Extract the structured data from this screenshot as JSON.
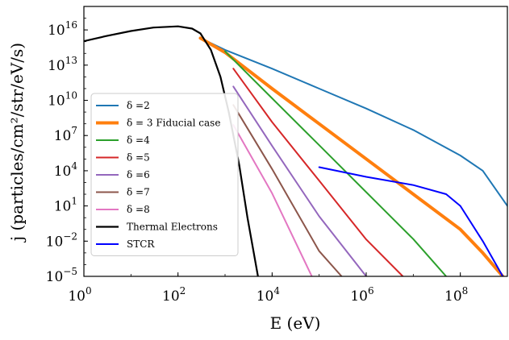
{
  "chart_data": {
    "type": "line",
    "title": "",
    "xlabel": "E (eV)",
    "ylabel": "j (particles/cm²/str/eV/s)",
    "x_scale": "log",
    "y_scale": "log",
    "xlim": [
      1,
      1000000000
    ],
    "ylim": [
      1e-05,
      1000000000000000000
    ],
    "grid": false,
    "legend_position": "lower-left",
    "x_ticks": [
      {
        "value": 1,
        "base": "10",
        "exp": "0"
      },
      {
        "value": 100,
        "base": "10",
        "exp": "2"
      },
      {
        "value": 10000,
        "base": "10",
        "exp": "4"
      },
      {
        "value": 1000000,
        "base": "10",
        "exp": "6"
      },
      {
        "value": 100000000,
        "base": "10",
        "exp": "8"
      }
    ],
    "y_ticks": [
      {
        "value": 1e-05,
        "base": "10",
        "exp": "−5"
      },
      {
        "value": 0.01,
        "base": "10",
        "exp": "−2"
      },
      {
        "value": 10,
        "base": "10",
        "exp": "1"
      },
      {
        "value": 10000,
        "base": "10",
        "exp": "4"
      },
      {
        "value": 10000000,
        "base": "10",
        "exp": "7"
      },
      {
        "value": 10000000000,
        "base": "10",
        "exp": "10"
      },
      {
        "value": 10000000000000,
        "base": "10",
        "exp": "13"
      },
      {
        "value": 10000000000000000,
        "base": "10",
        "exp": "16"
      }
    ],
    "series": [
      {
        "name": "δ =2",
        "color": "#1f77b4",
        "width": 2,
        "points": [
          [
            300,
            2000000000000000.0
          ],
          [
            1000,
            200000000000000.0
          ],
          [
            10000,
            5000000000000.0
          ],
          [
            100000,
            100000000000.0
          ],
          [
            1000000,
            2000000000.0
          ],
          [
            10000000,
            30000000.0
          ],
          [
            100000000,
            200000.0
          ],
          [
            300000000,
            10000.0
          ],
          [
            1000000000,
            10
          ]
        ]
      },
      {
        "name": "δ = 3 Fiducial case",
        "color": "#ff7f0e",
        "width": 4,
        "points": [
          [
            300,
            2000000000000000.0
          ],
          [
            1000,
            120000000000000.0
          ],
          [
            10000,
            100000000000.0
          ],
          [
            100000,
            100000000.0
          ],
          [
            1000000,
            100000.0
          ],
          [
            10000000,
            100
          ],
          [
            100000000,
            0.1
          ],
          [
            300000000,
            0.001
          ],
          [
            800000000,
            1e-05
          ]
        ]
      },
      {
        "name": "δ =4",
        "color": "#2ca02c",
        "width": 2,
        "points": [
          [
            1000,
            150000000000000.0
          ],
          [
            10000,
            15000000000.0
          ],
          [
            100000,
            1500000.0
          ],
          [
            1000000,
            150
          ],
          [
            10000000,
            0.015
          ],
          [
            50000000,
            1e-05
          ]
        ]
      },
      {
        "name": "δ =5",
        "color": "#d62728",
        "width": 2,
        "points": [
          [
            1500,
            5000000000000.0
          ],
          [
            10000,
            140000000.0
          ],
          [
            100000,
            1400
          ],
          [
            1000000,
            0.014
          ],
          [
            6000000,
            1e-05
          ]
        ]
      },
      {
        "name": "δ =6",
        "color": "#9467bd",
        "width": 2,
        "points": [
          [
            1500,
            150000000000.0
          ],
          [
            10000,
            1300000.0
          ],
          [
            100000,
            1.3
          ],
          [
            1000000,
            1e-05
          ]
        ]
      },
      {
        "name": "δ =7",
        "color": "#8c564b",
        "width": 2,
        "points": [
          [
            1500,
            4000000000.0
          ],
          [
            10000,
            14000.0
          ],
          [
            100000,
            0.0014
          ],
          [
            300000,
            1e-05
          ]
        ]
      },
      {
        "name": "δ =8",
        "color": "#e377c2",
        "width": 2,
        "points": [
          [
            1500,
            80000000.0
          ],
          [
            10000,
            120
          ],
          [
            70000,
            1e-05
          ]
        ]
      },
      {
        "name": "Thermal Electrons",
        "color": "#000000",
        "width": 2.2,
        "points": [
          [
            1,
            1100000000000000.0
          ],
          [
            3,
            3000000000000000.0
          ],
          [
            10,
            8000000000000000.0
          ],
          [
            30,
            1.6e+16
          ],
          [
            100,
            2e+16
          ],
          [
            200,
            1.3e+16
          ],
          [
            300,
            5000000000000000.0
          ],
          [
            500,
            200000000000000.0
          ],
          [
            800,
            1000000000000.0
          ],
          [
            1200,
            1000000000.0
          ],
          [
            2000,
            30000.0
          ],
          [
            3000,
            1
          ],
          [
            5000,
            1e-05
          ]
        ]
      },
      {
        "name": "STCR",
        "color": "#0000ff",
        "width": 2,
        "points": [
          [
            100000,
            20000.0
          ],
          [
            1000000,
            3000.0
          ],
          [
            10000000,
            600
          ],
          [
            50000000,
            100
          ],
          [
            100000000,
            10
          ],
          [
            300000000,
            0.01
          ],
          [
            800000000,
            1e-05
          ]
        ]
      }
    ]
  }
}
